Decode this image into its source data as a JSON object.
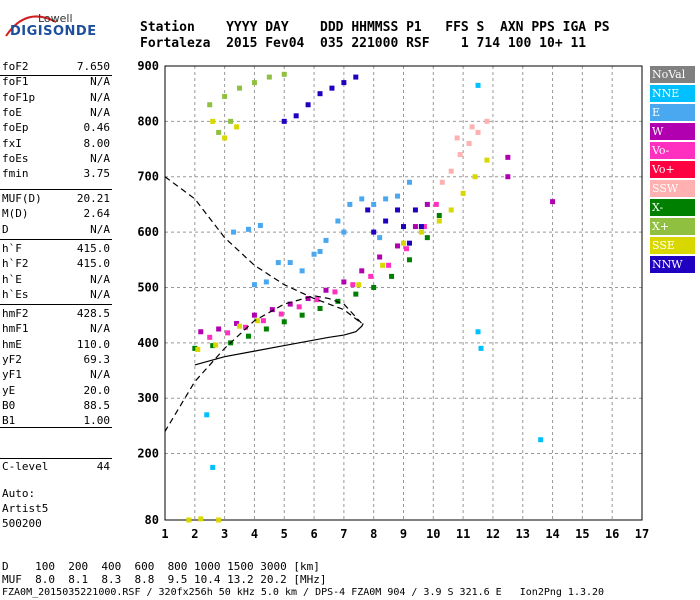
{
  "logo": {
    "line1": "Lowell",
    "line2": "DIGISONDE"
  },
  "header": {
    "line1": "Station    YYYY DAY    DDD HHMMSS P1   FFS S  AXN PPS IGA PS",
    "line2": "Fortaleza  2015 Fev04  035 221000 RSF    1 714 100 10+ 11"
  },
  "params": {
    "group1": [
      {
        "name": "foF2",
        "value": "7.650"
      },
      {
        "name": "foF1",
        "value": "N/A"
      },
      {
        "name": "foF1p",
        "value": "N/A"
      },
      {
        "name": "foE",
        "value": "N/A"
      },
      {
        "name": "foEp",
        "value": "0.46"
      },
      {
        "name": "fxI",
        "value": "8.00"
      },
      {
        "name": "foEs",
        "value": "N/A"
      },
      {
        "name": "fmin",
        "value": "3.75"
      }
    ],
    "group2": [
      {
        "name": "MUF(D)",
        "value": "20.21"
      },
      {
        "name": "M(D)",
        "value": "2.64"
      },
      {
        "name": "D",
        "value": "N/A"
      }
    ],
    "group3": [
      {
        "name": "h`F",
        "value": "415.0"
      },
      {
        "name": "h`F2",
        "value": "415.0"
      },
      {
        "name": "h`E",
        "value": "N/A"
      },
      {
        "name": "h`Es",
        "value": "N/A"
      }
    ],
    "group4": [
      {
        "name": "hmF2",
        "value": "428.5"
      },
      {
        "name": "hmF1",
        "value": "N/A"
      },
      {
        "name": "hmE",
        "value": "110.0"
      },
      {
        "name": "yF2",
        "value": "69.3"
      },
      {
        "name": "yF1",
        "value": "N/A"
      },
      {
        "name": "yE",
        "value": "20.0"
      },
      {
        "name": "B0",
        "value": "88.5"
      },
      {
        "name": "B1",
        "value": "1.00"
      }
    ],
    "clevel": {
      "name": "C-level",
      "value": "44"
    },
    "auto": {
      "line1": "Auto:",
      "line2": "Artist5",
      "line3": "500200"
    }
  },
  "legend": [
    {
      "label": "NoVal",
      "color": "#808080"
    },
    {
      "label": "NNE",
      "color": "#00c0ff"
    },
    {
      "label": "E",
      "color": "#4aa8f0"
    },
    {
      "label": "W",
      "color": "#b000b0"
    },
    {
      "label": "Vo-",
      "color": "#ff30c0"
    },
    {
      "label": "Vo+",
      "color": "#ff0040"
    },
    {
      "label": "SSW",
      "color": "#ffb0b0"
    },
    {
      "label": "X-",
      "color": "#008000"
    },
    {
      "label": "X+",
      "color": "#90c040"
    },
    {
      "label": "SSE",
      "color": "#d8d800"
    },
    {
      "label": "NNW",
      "color": "#2000c0"
    }
  ],
  "bottom": {
    "line1": "D    100  200  400  600  800 1000 1500 3000 [km]",
    "line2": "MUF  8.0  8.1  8.3  8.8  9.5 10.4 13.2 20.2 [MHz]",
    "line3": "FZA0M_2015035221000.RSF / 320fx256h 50 kHz 5.0 km / DPS-4 FZA0M 904 / 3.9 S 321.6 E   Ion2Png 1.3.20"
  },
  "chart_data": {
    "type": "scatter",
    "xlim": [
      1,
      17
    ],
    "ylim": [
      80,
      900
    ],
    "x_ticks": [
      1,
      2,
      3,
      4,
      5,
      6,
      7,
      8,
      9,
      10,
      11,
      12,
      13,
      14,
      15,
      16,
      17
    ],
    "y_ticks": [
      80,
      200,
      300,
      400,
      500,
      600,
      700,
      800,
      900
    ],
    "grid": "dashed",
    "legend_position": "right",
    "series": [
      {
        "name": "E",
        "points": [
          [
            3.3,
            600
          ],
          [
            3.8,
            605
          ],
          [
            4.2,
            612
          ],
          [
            4.8,
            545
          ],
          [
            5.2,
            545
          ],
          [
            5.6,
            530
          ],
          [
            6.0,
            560
          ],
          [
            6.4,
            585
          ],
          [
            6.8,
            620
          ],
          [
            7.2,
            650
          ],
          [
            7.6,
            660
          ],
          [
            8.0,
            650
          ],
          [
            8.4,
            660
          ],
          [
            8.8,
            665
          ],
          [
            9.2,
            690
          ],
          [
            4.0,
            505
          ],
          [
            4.4,
            510
          ],
          [
            6.2,
            565
          ],
          [
            7.0,
            600
          ],
          [
            8.2,
            590
          ]
        ]
      },
      {
        "name": "NNE",
        "points": [
          [
            11.5,
            865
          ],
          [
            11.5,
            420
          ],
          [
            11.6,
            390
          ],
          [
            13.6,
            225
          ],
          [
            2.4,
            270
          ],
          [
            2.6,
            175
          ]
        ]
      },
      {
        "name": "W",
        "points": [
          [
            2.2,
            420
          ],
          [
            2.8,
            425
          ],
          [
            3.4,
            435
          ],
          [
            4.0,
            450
          ],
          [
            4.6,
            460
          ],
          [
            5.2,
            470
          ],
          [
            5.8,
            480
          ],
          [
            6.4,
            495
          ],
          [
            7.0,
            510
          ],
          [
            7.6,
            530
          ],
          [
            8.2,
            555
          ],
          [
            8.8,
            575
          ],
          [
            9.4,
            610
          ],
          [
            9.8,
            650
          ],
          [
            12.5,
            735
          ],
          [
            12.5,
            700
          ],
          [
            14.0,
            655
          ]
        ]
      },
      {
        "name": "Vo-",
        "points": [
          [
            2.5,
            410
          ],
          [
            3.1,
            418
          ],
          [
            3.7,
            428
          ],
          [
            4.3,
            440
          ],
          [
            4.9,
            452
          ],
          [
            5.5,
            465
          ],
          [
            6.1,
            478
          ],
          [
            6.7,
            492
          ],
          [
            7.3,
            505
          ],
          [
            7.9,
            520
          ],
          [
            8.5,
            540
          ],
          [
            9.1,
            570
          ],
          [
            9.7,
            610
          ],
          [
            10.1,
            650
          ]
        ]
      },
      {
        "name": "SSW",
        "points": [
          [
            10.3,
            690
          ],
          [
            10.6,
            710
          ],
          [
            10.9,
            740
          ],
          [
            11.2,
            760
          ],
          [
            11.5,
            780
          ],
          [
            11.8,
            800
          ],
          [
            10.8,
            770
          ],
          [
            11.3,
            790
          ]
        ]
      },
      {
        "name": "X-",
        "points": [
          [
            2.0,
            390
          ],
          [
            2.6,
            395
          ],
          [
            3.2,
            400
          ],
          [
            3.8,
            412
          ],
          [
            4.4,
            425
          ],
          [
            5.0,
            438
          ],
          [
            5.6,
            450
          ],
          [
            6.2,
            462
          ],
          [
            6.8,
            475
          ],
          [
            7.4,
            488
          ],
          [
            8.0,
            500
          ],
          [
            8.6,
            520
          ],
          [
            9.2,
            550
          ],
          [
            9.8,
            590
          ],
          [
            10.2,
            630
          ]
        ]
      },
      {
        "name": "X+",
        "points": [
          [
            2.5,
            830
          ],
          [
            3.0,
            845
          ],
          [
            3.5,
            860
          ],
          [
            4.0,
            870
          ],
          [
            4.5,
            880
          ],
          [
            5.0,
            885
          ],
          [
            2.8,
            780
          ],
          [
            3.2,
            800
          ]
        ]
      },
      {
        "name": "SSE",
        "points": [
          [
            2.1,
            388
          ],
          [
            2.7,
            396
          ],
          [
            3.5,
            430
          ],
          [
            4.1,
            440
          ],
          [
            7.5,
            505
          ],
          [
            8.3,
            540
          ],
          [
            9.0,
            580
          ],
          [
            9.6,
            600
          ],
          [
            10.2,
            620
          ],
          [
            10.6,
            640
          ],
          [
            11.0,
            670
          ],
          [
            11.4,
            700
          ],
          [
            11.8,
            730
          ],
          [
            2.6,
            800
          ],
          [
            3.0,
            770
          ],
          [
            3.4,
            790
          ],
          [
            1.8,
            80
          ],
          [
            2.2,
            82
          ],
          [
            2.8,
            80
          ]
        ]
      },
      {
        "name": "NNW",
        "points": [
          [
            5.0,
            800
          ],
          [
            5.4,
            810
          ],
          [
            5.8,
            830
          ],
          [
            6.2,
            850
          ],
          [
            6.6,
            860
          ],
          [
            7.0,
            870
          ],
          [
            7.4,
            880
          ],
          [
            7.8,
            640
          ],
          [
            8.0,
            600
          ],
          [
            8.4,
            620
          ],
          [
            8.8,
            640
          ],
          [
            9.0,
            610
          ],
          [
            9.2,
            580
          ],
          [
            9.4,
            640
          ],
          [
            9.6,
            610
          ]
        ]
      }
    ],
    "profile_line": [
      [
        2.0,
        360
      ],
      [
        3.0,
        375
      ],
      [
        4.0,
        385
      ],
      [
        5.0,
        395
      ],
      [
        6.0,
        405
      ],
      [
        6.5,
        410
      ],
      [
        7.0,
        414
      ],
      [
        7.4,
        420
      ],
      [
        7.6,
        430
      ],
      [
        7.65,
        435
      ]
    ],
    "profile_dashed": [
      [
        1.0,
        700
      ],
      [
        2.0,
        660
      ],
      [
        3.0,
        590
      ],
      [
        4.0,
        540
      ],
      [
        5.0,
        505
      ],
      [
        6.0,
        480
      ],
      [
        7.0,
        460
      ],
      [
        7.6,
        435
      ],
      [
        7.0,
        470
      ],
      [
        6.5,
        480
      ],
      [
        6.0,
        485
      ],
      [
        5.0,
        470
      ],
      [
        4.0,
        440
      ],
      [
        3.0,
        390
      ],
      [
        2.0,
        330
      ],
      [
        1.0,
        240
      ]
    ]
  }
}
